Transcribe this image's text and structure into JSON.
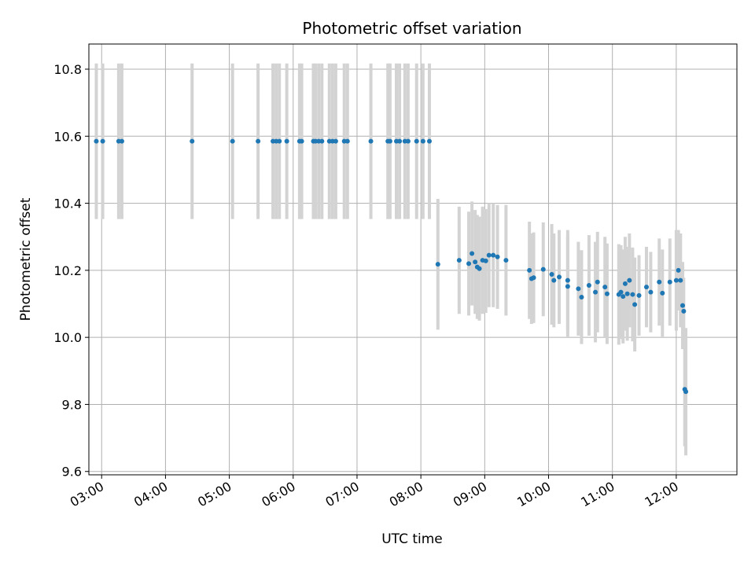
{
  "chart_data": {
    "type": "scatter",
    "title": "Photometric offset variation",
    "xlabel": "UTC time",
    "ylabel": "Photometric offset",
    "xlim": [
      "02:48",
      "12:57"
    ],
    "ylim": [
      9.59,
      10.875
    ],
    "x_ticks": [
      "03:00",
      "04:00",
      "05:00",
      "06:00",
      "07:00",
      "08:00",
      "09:00",
      "10:00",
      "11:00",
      "12:00"
    ],
    "y_ticks": [
      9.6,
      9.8,
      10.0,
      10.2,
      10.4,
      10.6,
      10.8
    ],
    "grid": true,
    "marker_color": "#1f77b4",
    "errorbar_color": "#d3d3d3",
    "series": [
      {
        "x": [
          "02:55",
          "03:01",
          "03:16",
          "03:19",
          "04:25",
          "05:03",
          "05:27",
          "05:41",
          "05:44",
          "05:47",
          "05:54",
          "06:06",
          "06:08",
          "06:19",
          "06:21",
          "06:24",
          "06:27",
          "06:34",
          "06:37",
          "06:40",
          "06:48",
          "06:51",
          "07:13",
          "07:29",
          "07:31",
          "07:37",
          "07:40",
          "07:45",
          "07:48",
          "07:56",
          "08:02",
          "08:08"
        ],
        "y": [
          10.585,
          10.585,
          10.585,
          10.585,
          10.585,
          10.585,
          10.585,
          10.585,
          10.585,
          10.585,
          10.585,
          10.585,
          10.585,
          10.585,
          10.585,
          10.585,
          10.585,
          10.585,
          10.585,
          10.585,
          10.585,
          10.585,
          10.585,
          10.585,
          10.585,
          10.585,
          10.585,
          10.585,
          10.585,
          10.585,
          10.585,
          10.585
        ],
        "err": [
          0.232,
          0.232,
          0.232,
          0.232,
          0.232,
          0.232,
          0.232,
          0.232,
          0.232,
          0.232,
          0.232,
          0.232,
          0.232,
          0.232,
          0.232,
          0.232,
          0.232,
          0.232,
          0.232,
          0.232,
          0.232,
          0.232,
          0.232,
          0.232,
          0.232,
          0.232,
          0.232,
          0.232,
          0.232,
          0.232,
          0.232,
          0.232
        ]
      },
      {
        "x": [
          "08:16",
          "08:36",
          "08:45",
          "08:48",
          "08:51",
          "08:53",
          "08:55",
          "08:58",
          "09:01",
          "09:04",
          "09:08",
          "09:12",
          "09:20",
          "09:42",
          "09:44",
          "09:46",
          "09:55",
          "10:03",
          "10:05",
          "10:10",
          "10:18",
          "10:18",
          "10:28",
          "10:31",
          "10:38",
          "10:44",
          "10:46",
          "10:53",
          "10:55",
          "11:06",
          "11:08",
          "11:10",
          "11:12",
          "11:14",
          "11:16",
          "11:19",
          "11:21",
          "11:25",
          "11:32",
          "11:36",
          "11:44",
          "11:47",
          "11:54",
          "12:00",
          "12:02",
          "12:04",
          "12:06",
          "12:07",
          "12:08",
          "12:09"
        ],
        "y": [
          10.218,
          10.23,
          10.22,
          10.25,
          10.225,
          10.21,
          10.205,
          10.23,
          10.228,
          10.245,
          10.245,
          10.24,
          10.23,
          10.2,
          10.175,
          10.178,
          10.203,
          10.188,
          10.17,
          10.18,
          10.17,
          10.152,
          10.145,
          10.12,
          10.155,
          10.135,
          10.165,
          10.15,
          10.13,
          10.128,
          10.135,
          10.122,
          10.16,
          10.13,
          10.17,
          10.128,
          10.098,
          10.125,
          10.15,
          10.135,
          10.165,
          10.132,
          10.165,
          10.17,
          10.2,
          10.17,
          10.095,
          10.078,
          9.845,
          9.838
        ],
        "err": [
          0.195,
          0.16,
          0.155,
          0.155,
          0.155,
          0.155,
          0.155,
          0.16,
          0.155,
          0.155,
          0.155,
          0.155,
          0.165,
          0.145,
          0.135,
          0.135,
          0.14,
          0.15,
          0.14,
          0.14,
          0.15,
          0.15,
          0.14,
          0.14,
          0.15,
          0.15,
          0.15,
          0.15,
          0.15,
          0.15,
          0.14,
          0.14,
          0.14,
          0.14,
          0.14,
          0.14,
          0.14,
          0.12,
          0.12,
          0.12,
          0.13,
          0.13,
          0.13,
          0.15,
          0.12,
          0.14,
          0.13,
          0.1,
          0.17,
          0.19
        ]
      }
    ]
  }
}
